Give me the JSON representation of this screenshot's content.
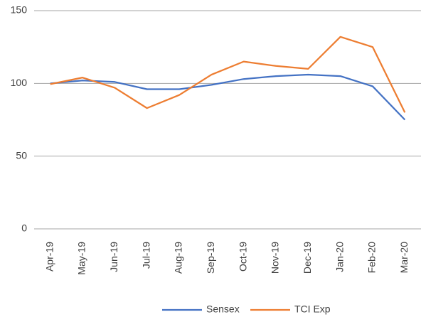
{
  "chart_data": {
    "type": "line",
    "categories": [
      "Apr-19",
      "May-19",
      "Jun-19",
      "Jul-19",
      "Aug-19",
      "Sep-19",
      "Oct-19",
      "Nov-19",
      "Dec-19",
      "Jan-20",
      "Feb-20",
      "Mar-20"
    ],
    "series": [
      {
        "name": "Sensex",
        "color": "#4472c4",
        "values": [
          100,
          102,
          101,
          96,
          96,
          99,
          103,
          105,
          106,
          105,
          98,
          75
        ]
      },
      {
        "name": "TCI Exp",
        "color": "#ed7d31",
        "values": [
          99.5,
          104,
          97,
          83,
          92,
          106,
          115,
          112,
          110,
          132,
          125,
          80
        ]
      }
    ],
    "ylim": [
      0,
      150
    ],
    "yticks": [
      0,
      50,
      100,
      150
    ],
    "grid": true,
    "legend": "bottom"
  }
}
